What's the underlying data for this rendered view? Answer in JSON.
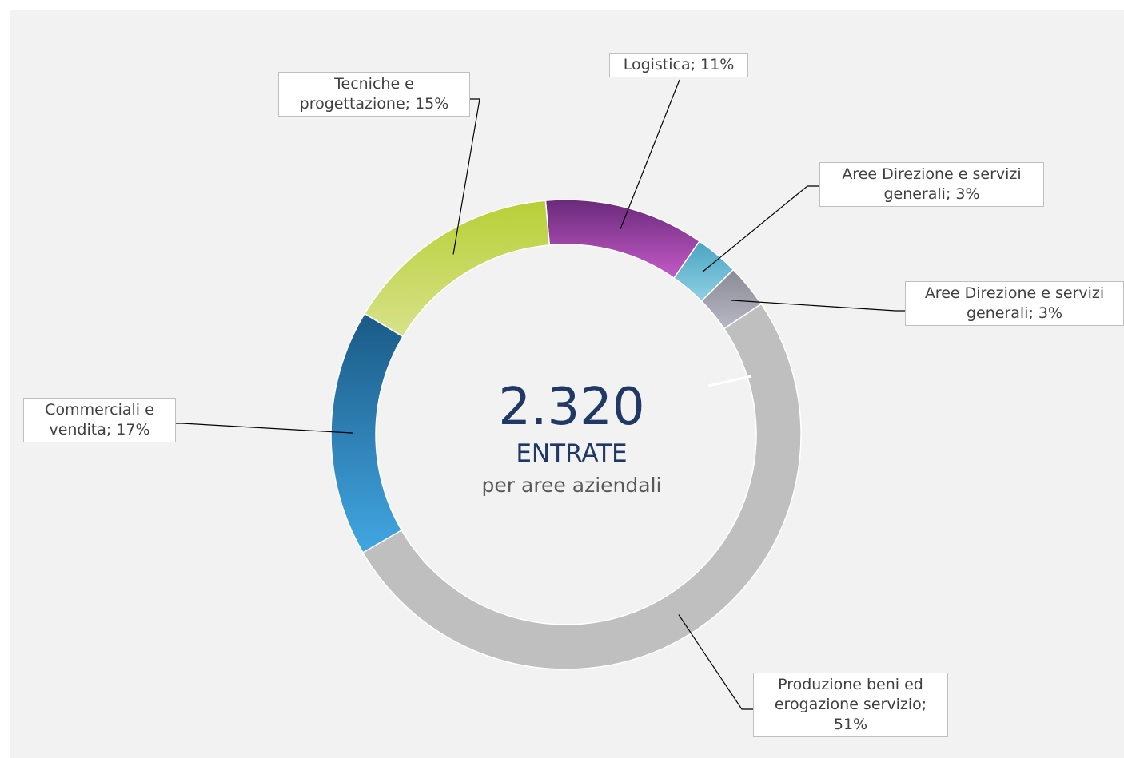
{
  "chart_data": {
    "type": "pie",
    "subtype": "donut",
    "center": {
      "value": "2.320",
      "title": "ENTRATE",
      "subtitle": "per aree aziendali"
    },
    "slices": [
      {
        "label": "Logistica; 11%",
        "name": "Logistica",
        "value": 11,
        "color_top": "#6a2a7a",
        "color_bottom": "#c45ac8"
      },
      {
        "label": "Aree Direzione e servizi generali; 3%",
        "name": "Aree Direzione e servizi generali",
        "value": 3,
        "color_top": "#4aa3c2",
        "color_bottom": "#8fd0e4"
      },
      {
        "label": "Aree Direzione e servizi generali; 3%",
        "name": "Aree Direzione e servizi generali",
        "value": 3,
        "color_top": "#8a8a96",
        "color_bottom": "#b8b8c4"
      },
      {
        "label": "Produzione beni ed erogazione servizio; 51%",
        "name": "Produzione beni ed erogazione servizio",
        "value": 51,
        "color_top": "#bfbfbf",
        "color_bottom": "#bfbfbf"
      },
      {
        "label": "Commerciali e vendita; 17%",
        "name": "Commerciali e vendita",
        "value": 17,
        "color_top": "#1a5a86",
        "color_bottom": "#42a6e2"
      },
      {
        "label": "Tecniche e progettazione; 15%",
        "name": "Tecniche e progettazione",
        "value": 15,
        "color_top": "#b8cf36",
        "color_bottom": "#d7e28a"
      }
    ],
    "legend": "none"
  }
}
